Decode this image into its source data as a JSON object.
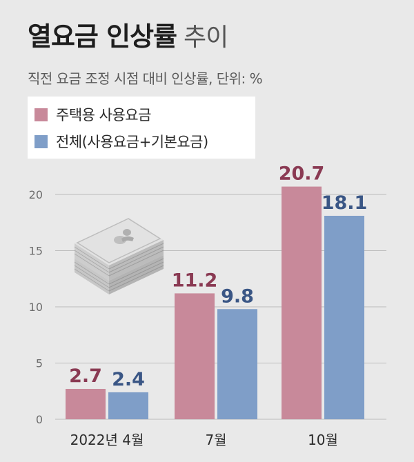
{
  "header": {
    "title_bold": "열요금 인상률",
    "title_light": "추이",
    "subtitle": "직전 요금 조정 시점 대비 인상률, 단위: %"
  },
  "colors": {
    "series0": "#c8899a",
    "series1": "#7f9ec8",
    "label0": "#8a3a53",
    "label1": "#3a5685"
  },
  "chart_data": {
    "type": "bar",
    "title": "열요금 인상률 추이",
    "subtitle": "직전 요금 조정 시점 대비 인상률, 단위: %",
    "categories": [
      "2022년 4월",
      "7월",
      "10월"
    ],
    "series": [
      {
        "name": "주택용 사용요금",
        "values": [
          2.7,
          11.2,
          20.7
        ]
      },
      {
        "name": "전체(사용요금+기본요금)",
        "values": [
          2.4,
          9.8,
          18.1
        ]
      }
    ],
    "ylim": [
      0,
      20
    ],
    "yticks": [
      0,
      5,
      10,
      15,
      20
    ],
    "grid": true,
    "legend_position": "top-left",
    "icon": "banknote-stack-icon"
  }
}
